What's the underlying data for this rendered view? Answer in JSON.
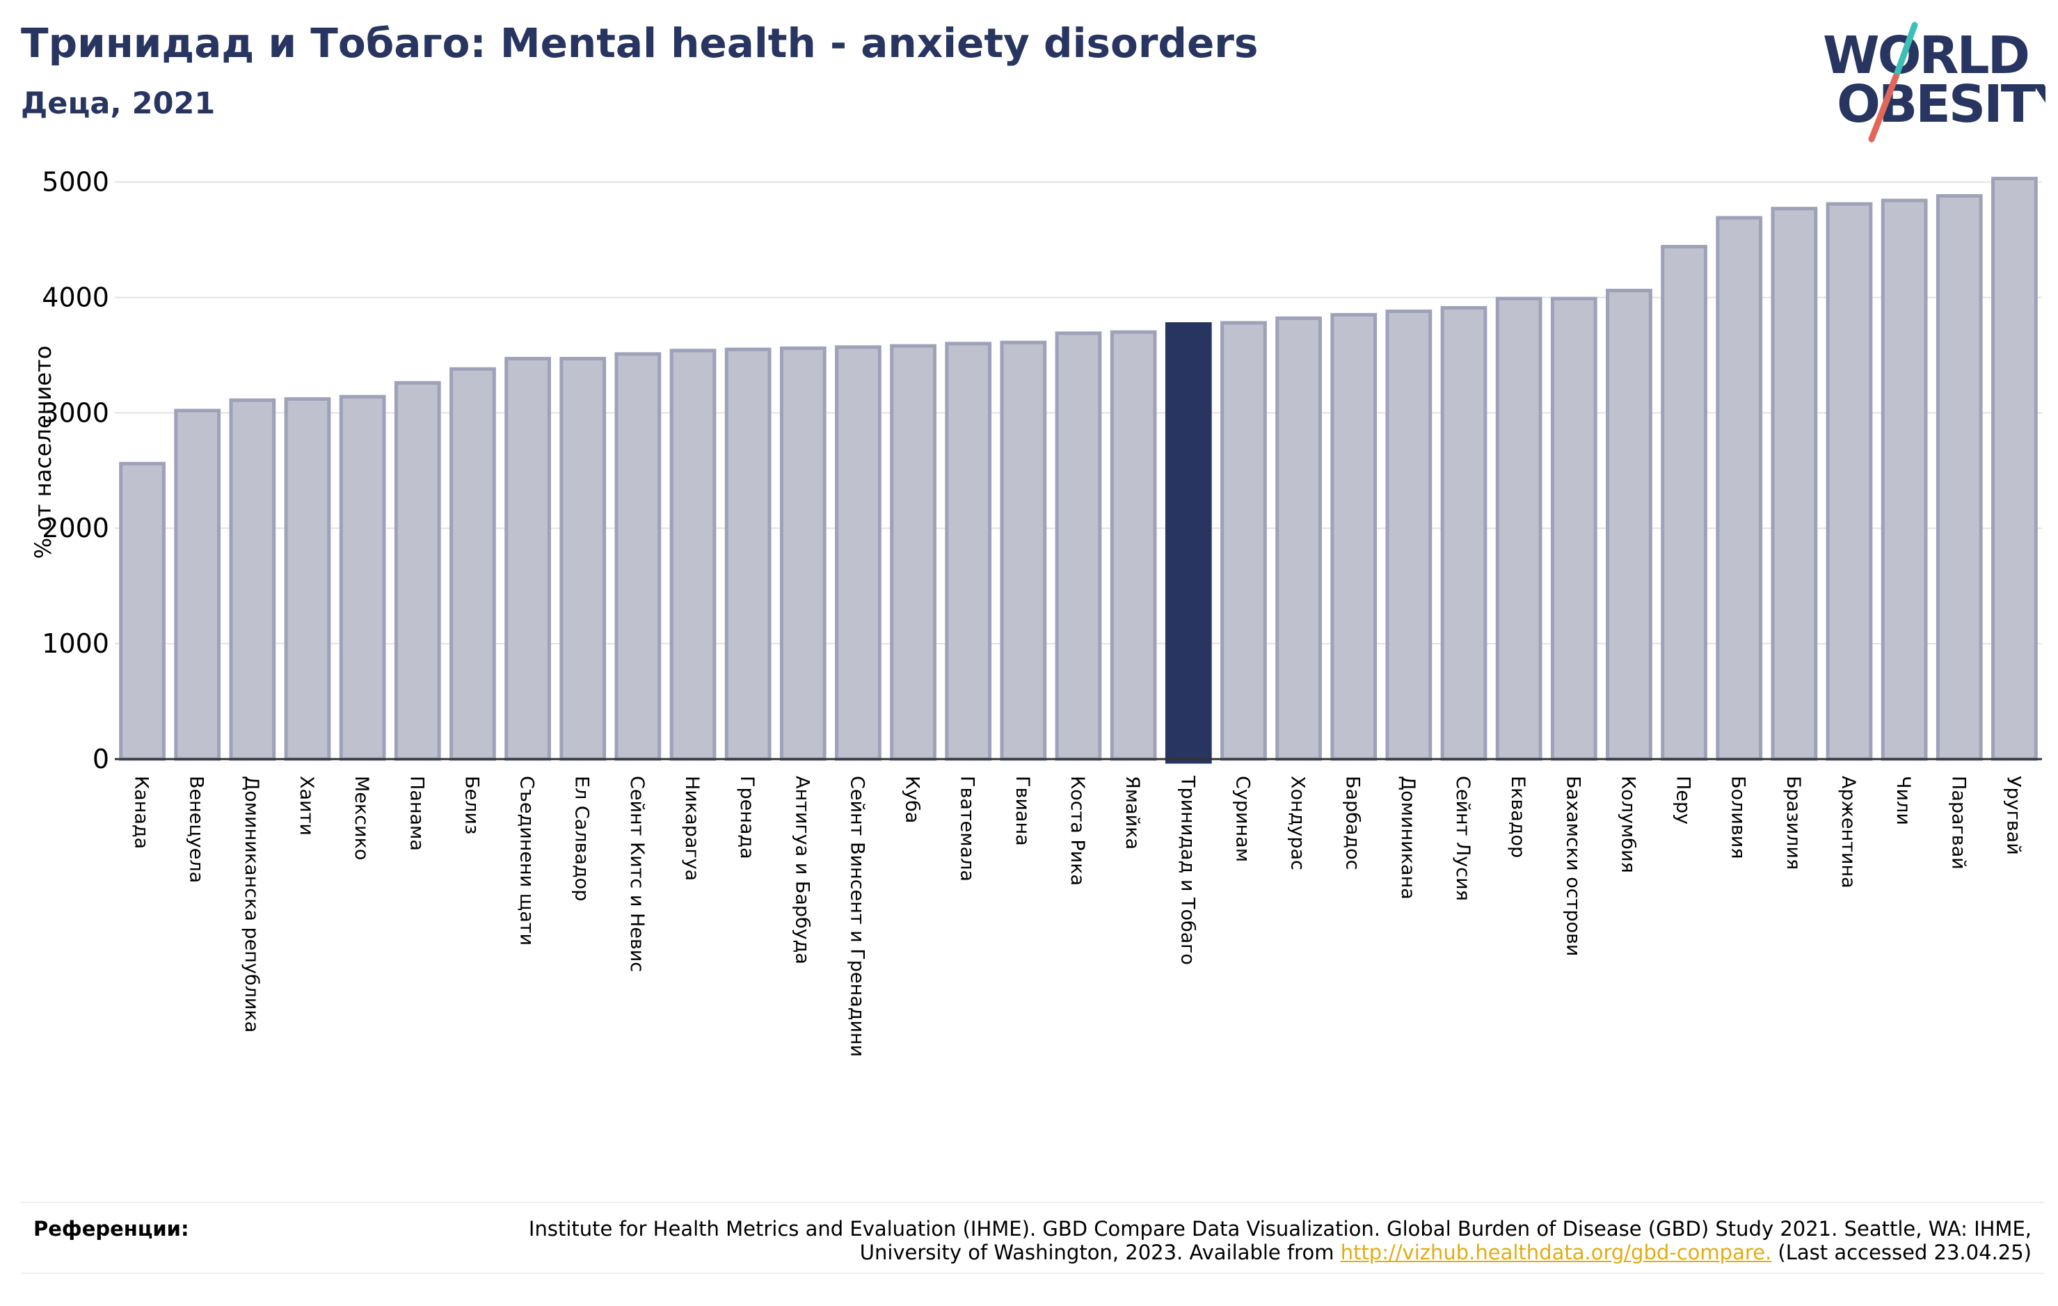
{
  "header": {
    "title": "Тринидад и Тобаго: Mental health - anxiety disorders",
    "subtitle": "Деца, 2021"
  },
  "logo": {
    "line1": "WORLD",
    "line2": "OBESITY"
  },
  "colors": {
    "highlight": "#273560",
    "bar": "#bfc1ce",
    "bar_edge": "#9ea1b8",
    "accent_teal": "#3dbfb8",
    "accent_red": "#e0675a",
    "link": "#e1ad13"
  },
  "chart_data": {
    "type": "bar",
    "title": "Тринидад и Тобаго: Mental health - anxiety disorders",
    "subtitle": "Деца, 2021",
    "ylabel": "% от населението",
    "xlabel": "",
    "ylim": [
      0,
      5100
    ],
    "yticks": [
      0,
      1000,
      2000,
      3000,
      4000,
      5000
    ],
    "grid": true,
    "highlight": "Тринидад и Тобаго",
    "categories": [
      "Канада",
      "Венецуела",
      "Доминиканска република",
      "Хаити",
      "Мексико",
      "Панама",
      "Белиз",
      "Съединени щати",
      "Ел Салвадор",
      "Сейнт Китс и Невис",
      "Никарагуа",
      "Гренада",
      "Антигуа и Барбуда",
      "Сейнт Винсент и Гренадини",
      "Куба",
      "Гватемала",
      "Гвиана",
      "Коста Рика",
      "Ямайка",
      "Тринидад и Тобаго",
      "Суринам",
      "Хондурас",
      "Барбадос",
      "Доминикана",
      "Сейнт Лусия",
      "Еквадор",
      "Бахамски острови",
      "Колумбия",
      "Перу",
      "Боливия",
      "Бразилия",
      "Аржентина",
      "Чили",
      "Парагвай",
      "Уругвай"
    ],
    "values": [
      2560,
      3020,
      3110,
      3120,
      3140,
      3260,
      3380,
      3470,
      3470,
      3510,
      3540,
      3550,
      3560,
      3570,
      3580,
      3600,
      3610,
      3690,
      3700,
      3770,
      3780,
      3820,
      3850,
      3880,
      3910,
      3990,
      3990,
      4060,
      4440,
      4690,
      4770,
      4810,
      4840,
      4880,
      5030
    ]
  },
  "references": {
    "label": "Референции:",
    "text": "Institute for Health Metrics and Evaluation (IHME). GBD Compare Data Visualization. Global Burden of Disease (GBD) Study 2021. Seattle, WA: IHME, University of Washington, 2023. Available from",
    "link": "http://vizhub.healthdata.org/gbd-compare.",
    "suffix": "(Last accessed 23.04.25)"
  }
}
